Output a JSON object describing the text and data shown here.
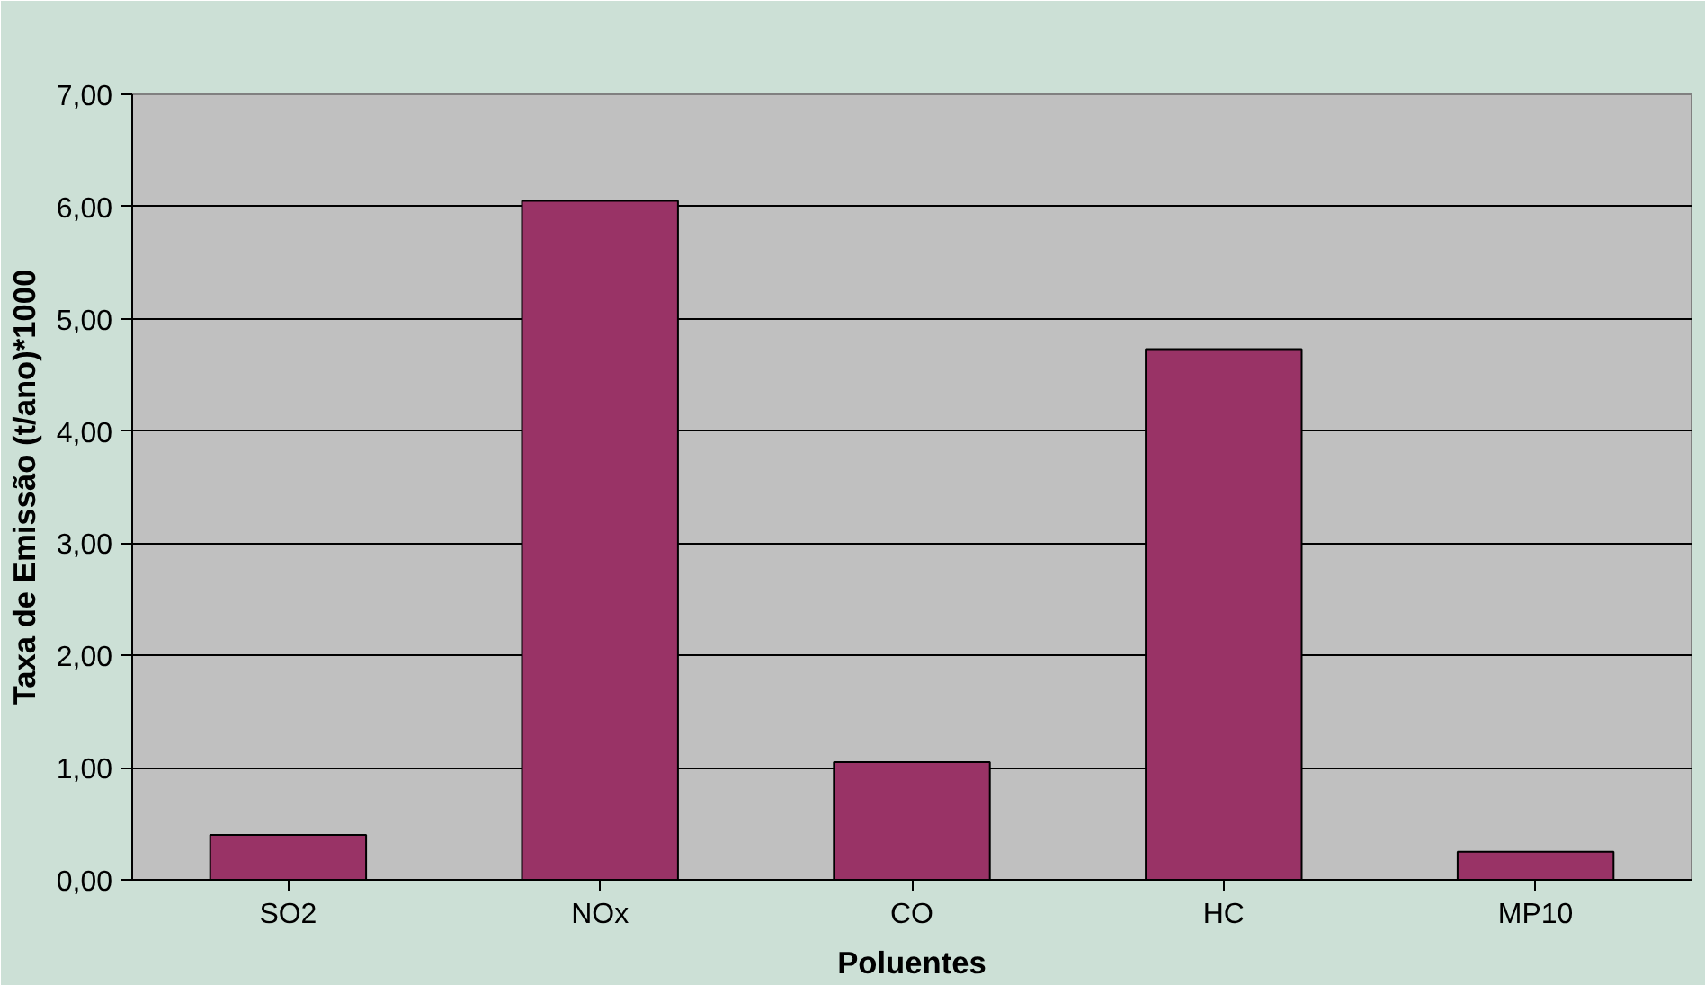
{
  "chart_data": {
    "type": "bar",
    "xlabel": "Poluentes",
    "ylabel": "Taxa de Emissão (t/ano)*1000",
    "categories": [
      "SO2",
      "NOx",
      "CO",
      "HC",
      "MP10"
    ],
    "values": [
      0.4,
      6.05,
      1.05,
      4.73,
      0.25
    ],
    "color": "#993366",
    "ylim": [
      0,
      7
    ],
    "yticks": [
      {
        "value": 0,
        "label": "0,00"
      },
      {
        "value": 1,
        "label": "1,00"
      },
      {
        "value": 2,
        "label": "2,00"
      },
      {
        "value": 3,
        "label": "3,00"
      },
      {
        "value": 4,
        "label": "4,00"
      },
      {
        "value": 5,
        "label": "5,00"
      },
      {
        "value": 6,
        "label": "6,00"
      },
      {
        "value": 7,
        "label": "7,00"
      }
    ],
    "grid": "y"
  }
}
